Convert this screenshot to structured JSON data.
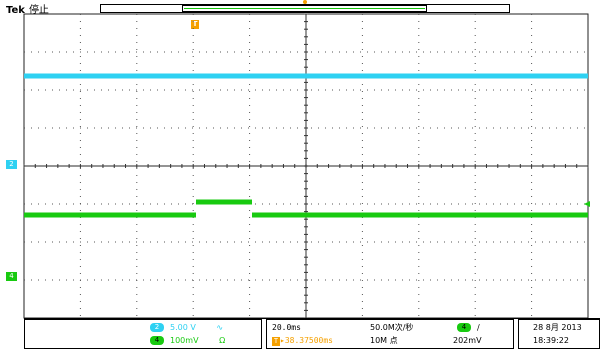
{
  "header": {
    "brand": "Tek",
    "run_state": "停止",
    "trigger_marker_label": "T"
  },
  "channels": [
    {
      "number": "2",
      "color": "#2ed1f2",
      "scale": "5.00 V",
      "coupling_symbol": "∿"
    },
    {
      "number": "4",
      "color": "#18ca10",
      "scale": "100mV",
      "coupling_symbol": "Ω"
    }
  ],
  "timebase": {
    "horizontal_scale": "20.0ms",
    "trigger_position": "▸38.37500ms",
    "sample_rate": "50.0M次/秒",
    "record_length": "10M 点"
  },
  "trigger": {
    "source": "4",
    "slope_symbol": "∕",
    "level": "202mV"
  },
  "datetime": {
    "date": "28 8月 2013",
    "time": "18:39:22"
  },
  "colors": {
    "cyan": "#2ed1f2",
    "green": "#18ca10",
    "orange": "#f5a000",
    "grid": "#333333"
  }
}
